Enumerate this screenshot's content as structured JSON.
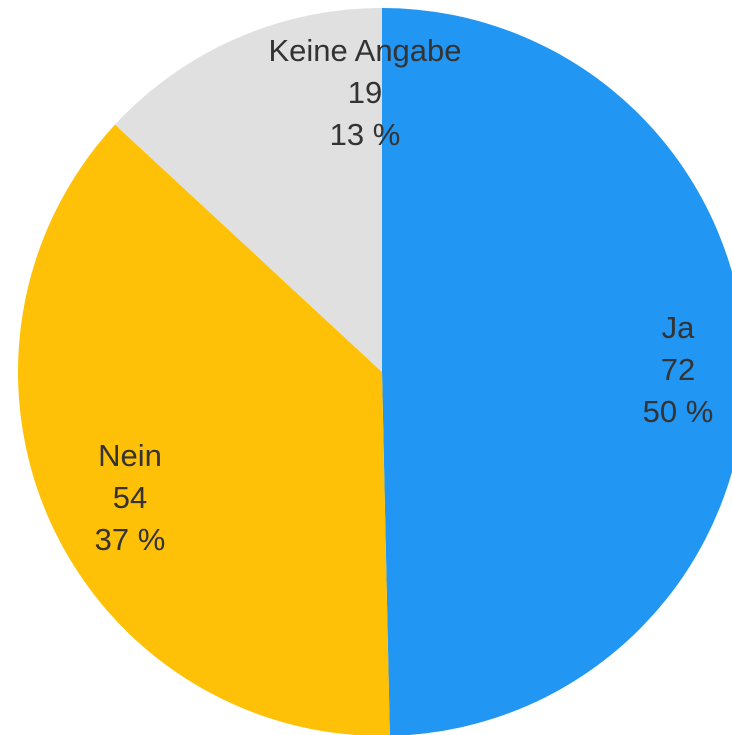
{
  "chart_data": {
    "type": "pie",
    "categories": [
      "Ja",
      "Nein",
      "Keine Angabe"
    ],
    "values": [
      72,
      54,
      19
    ],
    "percentages": [
      50,
      37,
      13
    ],
    "percentage_labels": [
      "50 %",
      "37 %",
      "13 %"
    ],
    "colors": [
      "#2196f3",
      "#ffc107",
      "#e0e0e0"
    ]
  }
}
